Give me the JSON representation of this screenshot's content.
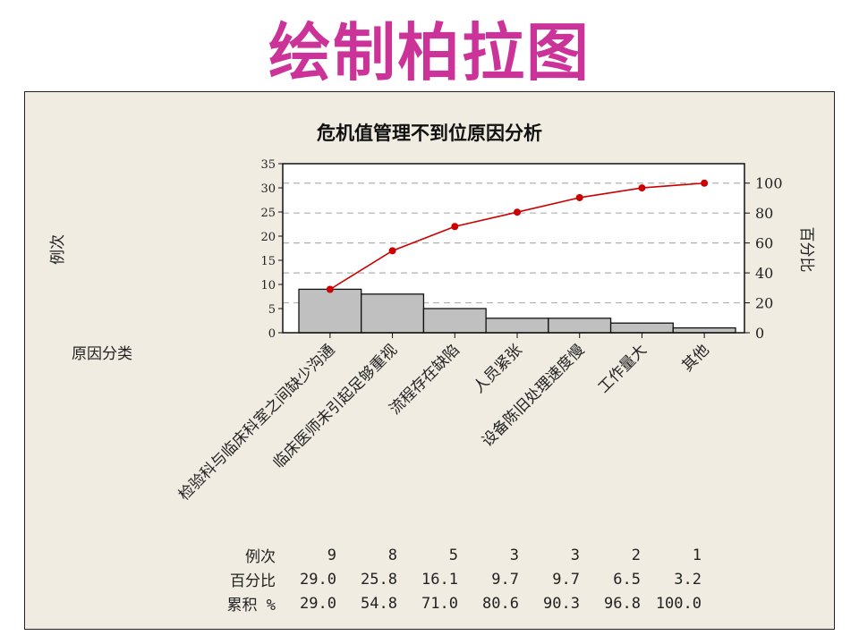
{
  "slide_title": "绘制柏拉图",
  "colors": {
    "title": "#cc3399",
    "bar": "#c0c0c0",
    "line": "#cc0000",
    "panel": "#f0ece2"
  },
  "chart_data": {
    "type": "bar",
    "title": "危机值管理不到位原因分析",
    "xlabel": "原因分类",
    "ylabel": "例次",
    "y2label": "百分比",
    "ylim": [
      0,
      35
    ],
    "y_ticks": [
      0,
      5,
      10,
      15,
      20,
      25,
      30,
      35
    ],
    "y2lim": [
      0,
      113
    ],
    "y2_ticks": [
      0,
      20,
      40,
      60,
      80,
      100
    ],
    "grid": "dashed horizontal at right-axis ticks",
    "categories": [
      "检验科与临床科室之间缺少沟通",
      "临床医师未引起足够重视",
      "流程存在缺陷",
      "人员紧张",
      "设备陈旧处理速度慢",
      "工作量大",
      "其他"
    ],
    "series": [
      {
        "type": "bar",
        "values": [
          9,
          8,
          5,
          3,
          3,
          2,
          1
        ]
      },
      {
        "type": "line",
        "values": [
          29.0,
          54.8,
          71.0,
          80.6,
          90.3,
          96.8,
          100.0
        ]
      }
    ],
    "table": {
      "rows": [
        {
          "label": "例次",
          "values": [
            "9",
            "8",
            "5",
            "3",
            "3",
            "2",
            "1"
          ]
        },
        {
          "label": "百分比",
          "values": [
            "29.0",
            "25.8",
            "16.1",
            "9.7",
            "9.7",
            "6.5",
            "3.2"
          ]
        },
        {
          "label": "累积 %",
          "values": [
            "29.0",
            "54.8",
            "71.0",
            "80.6",
            "90.3",
            "96.8",
            "100.0"
          ]
        }
      ]
    }
  }
}
